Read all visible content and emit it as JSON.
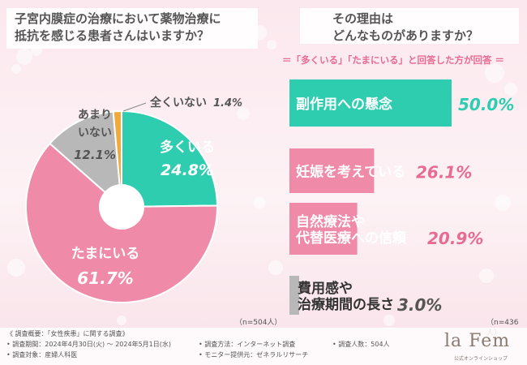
{
  "left_question": {
    "line1": "子宮内膜症の治療において薬物治療に",
    "line2": "抵抗を感じる患者さんはいますか？"
  },
  "right_question": {
    "line1": "その理由は",
    "line2": "どんなものがありますか？"
  },
  "right_subtitle": "＝「多くいる」「たまにいる」と回答した方が回答 ＝",
  "colors": {
    "teal": "#2ecdb0",
    "pink": "#ef8aa8",
    "gray": "#b8b8b8",
    "orange": "#f2a93b",
    "text_pink": "#e86b93"
  },
  "chart_data": [
    {
      "type": "pie",
      "n_label": "（n=504人）",
      "slices": [
        {
          "name_lines": [
            "多くいる"
          ],
          "value": 24.8,
          "value_label": "24.8%",
          "color": "#2ecdb0",
          "text_color": "#ffffff"
        },
        {
          "name_lines": [
            "たまにいる"
          ],
          "value": 61.7,
          "value_label": "61.7%",
          "color": "#ef8aa8",
          "text_color": "#ffffff"
        },
        {
          "name_lines": [
            "あまり",
            "いない"
          ],
          "value": 12.1,
          "value_label": "12.1%",
          "color": "#b8b8b8",
          "text_color": "#555555"
        },
        {
          "name_lines": [
            "全くいない"
          ],
          "value": 1.4,
          "value_label": "1.4%",
          "color": "#f2a93b",
          "text_color": "#555555"
        }
      ]
    },
    {
      "type": "bar",
      "n_label": "（n=436人）",
      "categories": [
        [
          "副作用への懸念"
        ],
        [
          "妊娠を考えている"
        ],
        [
          "自然療法や",
          "代替医療への信頼"
        ],
        [
          "費用感や",
          "治療期間の長さ"
        ]
      ],
      "values": [
        50.0,
        26.1,
        20.9,
        3.0
      ],
      "value_labels": [
        "50.0%",
        "26.1%",
        "20.9%",
        "3.0%"
      ],
      "colors": [
        "#2ecdb0",
        "#ef8aa8",
        "#ef8aa8",
        "#b8b8b8"
      ],
      "label_colors": [
        "#ffffff",
        "#ffffff",
        "#ffffff",
        "#333333"
      ],
      "value_colors": [
        "#2ecdb0",
        "#e86b93",
        "#e86b93",
        "#555555"
      ],
      "xlim": [
        0,
        50
      ]
    }
  ],
  "footer": {
    "l1": "《 調査概要：「女性疾患」に関する調査》",
    "l2": "• 調査期間：2024年4月30日(火) ～ 2024年5月1日(水)",
    "l3": "• 調査対象：産婦人科医",
    "m1": "• 調査方法：インターネット調査",
    "m2": "• モニター提供元：ゼネラルリサーチ",
    "r1": "• 調査人数：504人"
  },
  "brand": {
    "name": "la Fem",
    "sub": "公式オンラインショップ"
  }
}
